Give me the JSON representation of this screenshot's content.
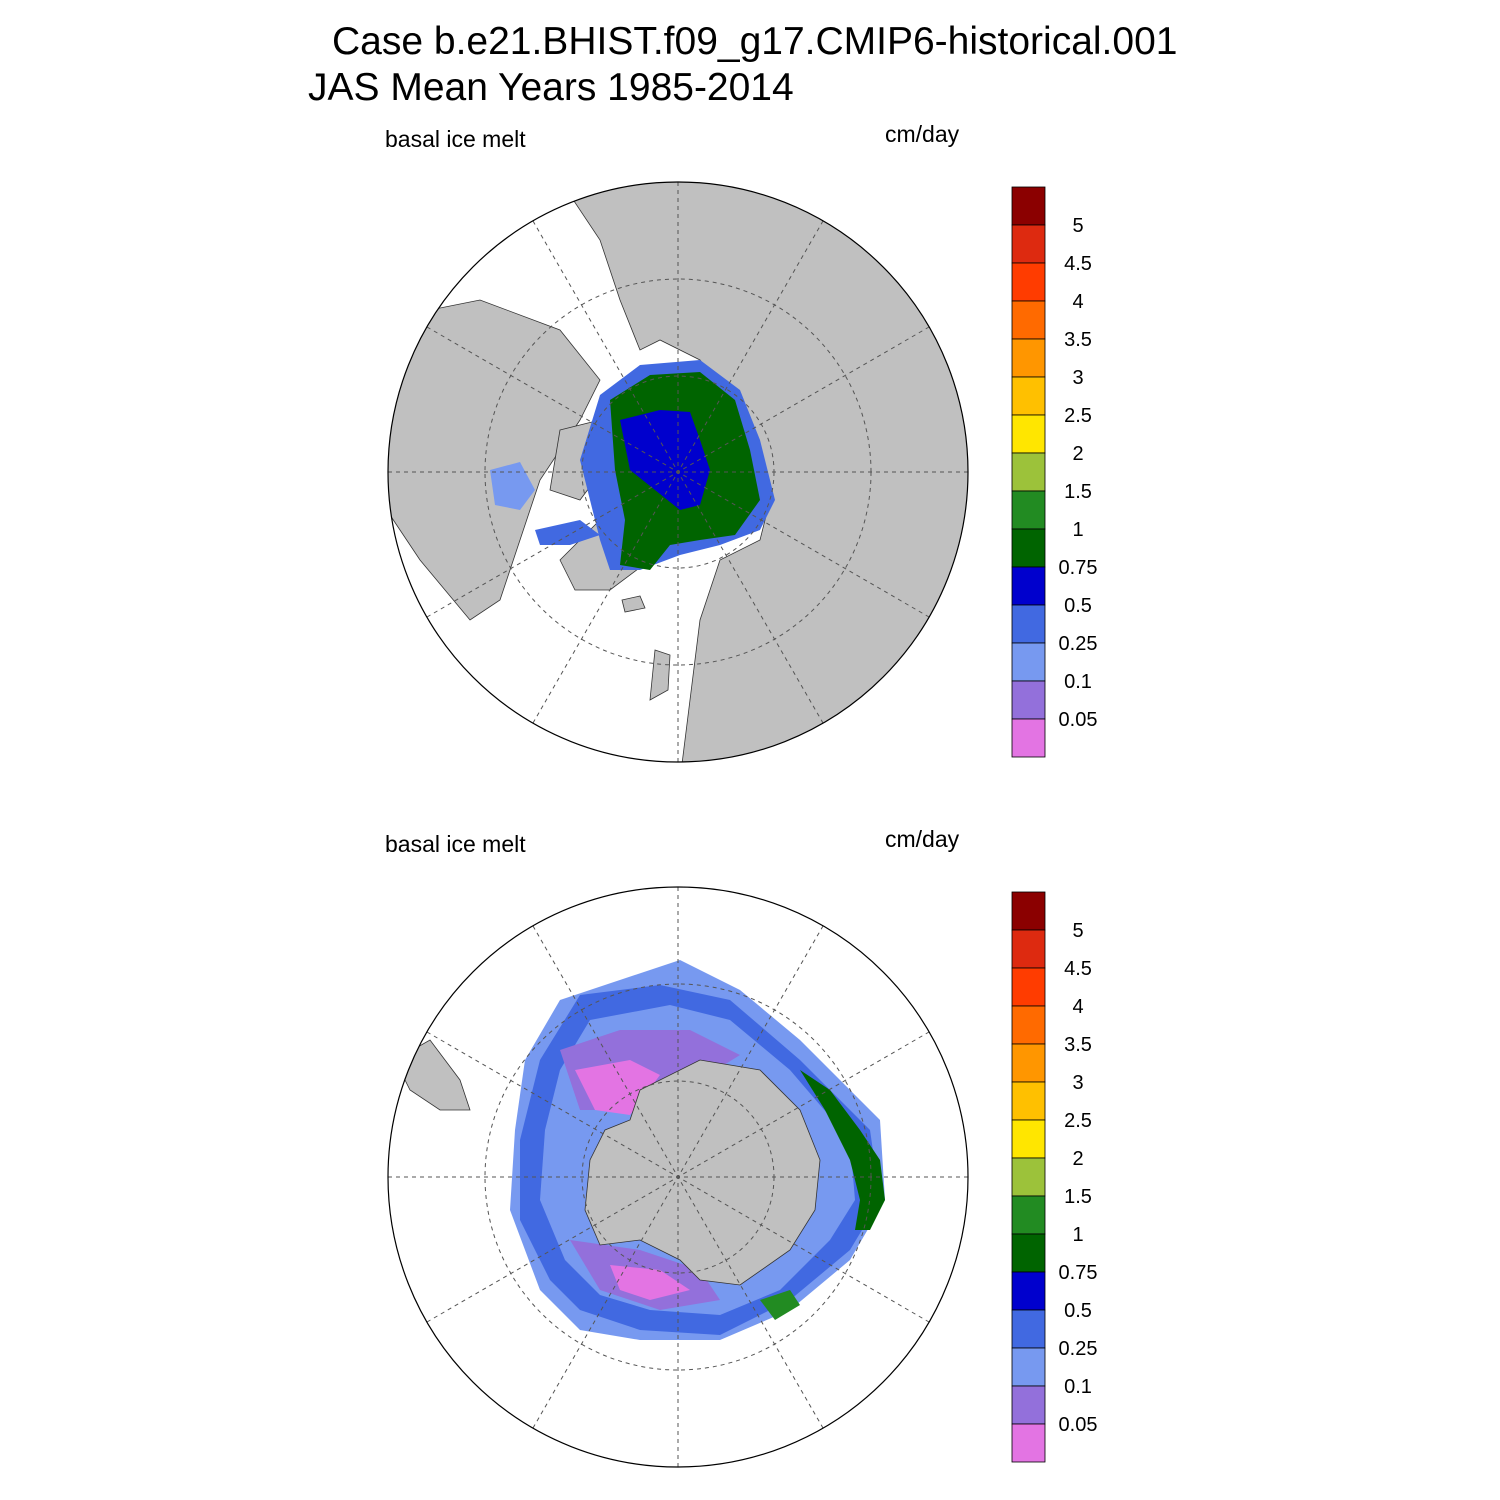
{
  "title": {
    "line1": "Case b.e21.BHIST.f09_g17.CMIP6-historical.001",
    "line2": "JAS Mean   Years 1985-2014"
  },
  "panels": [
    {
      "hemisphere": "north",
      "left_label": "basal ice melt",
      "right_label": "cm/day"
    },
    {
      "hemisphere": "south",
      "left_label": "basal ice melt",
      "right_label": "cm/day"
    }
  ],
  "colorbar": {
    "labels": [
      "5",
      "4.5",
      "4",
      "3.5",
      "3",
      "2.5",
      "2",
      "1.5",
      "1",
      "0.75",
      "0.5",
      "0.25",
      "0.1",
      "0.05"
    ],
    "colors": [
      "#8b0000",
      "#dd2a10",
      "#ff3c00",
      "#ff6a00",
      "#ff9600",
      "#ffc000",
      "#ffe600",
      "#9cc23a",
      "#228b22",
      "#006400",
      "#0000cd",
      "#4169e1",
      "#7799f0",
      "#9370db",
      "#e374e3"
    ]
  },
  "style": {
    "land_color": "#c0c0c0",
    "grid_color": "#555555"
  }
}
